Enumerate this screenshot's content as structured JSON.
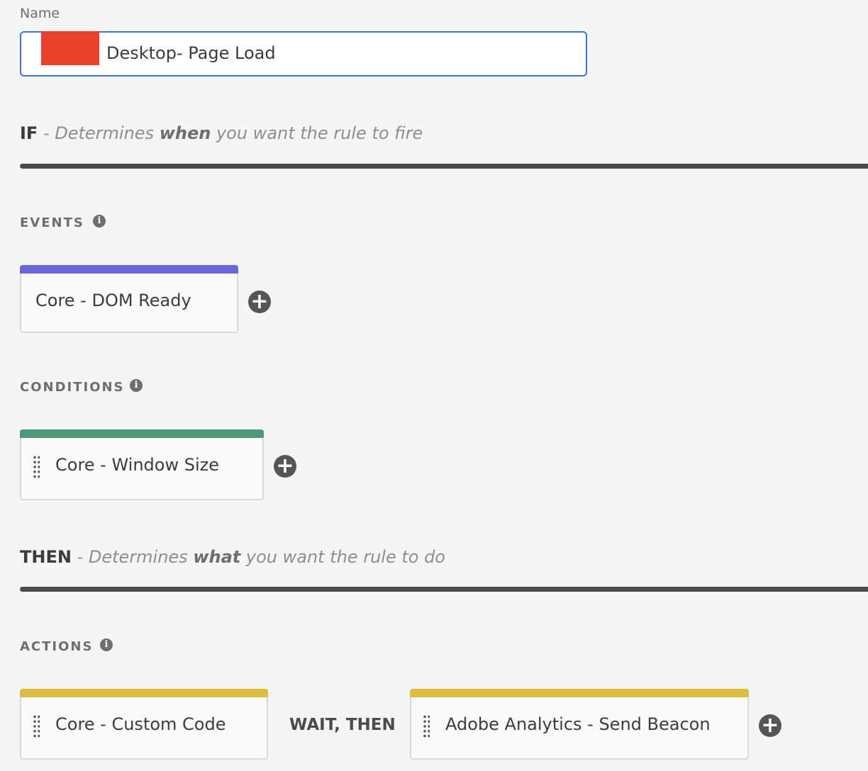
{
  "name_field": {
    "label": "Name",
    "value": "Desktop- Page Load"
  },
  "if_header": {
    "keyword": "IF",
    "prefix": " - Determines ",
    "emphasis": "when",
    "suffix": " you want the rule to fire"
  },
  "then_header": {
    "keyword": "THEN",
    "prefix": " - Determines ",
    "emphasis": "what",
    "suffix": " you want the rule to do"
  },
  "events": {
    "title": "EVENTS",
    "items": [
      {
        "label": "Core - DOM Ready",
        "color": "#6767e0"
      }
    ]
  },
  "conditions": {
    "title": "CONDITIONS",
    "items": [
      {
        "label": "Core - Window Size",
        "color": "#4c9a78"
      }
    ]
  },
  "actions": {
    "title": "ACTIONS",
    "items": [
      {
        "label": "Core - Custom Code",
        "color": "#dcbd3f"
      },
      {
        "label": "Adobe Analytics - Send Beacon",
        "color": "#dcbd3f"
      }
    ],
    "separator": "WAIT, THEN"
  },
  "icons": {
    "info": "i",
    "add": "+"
  }
}
